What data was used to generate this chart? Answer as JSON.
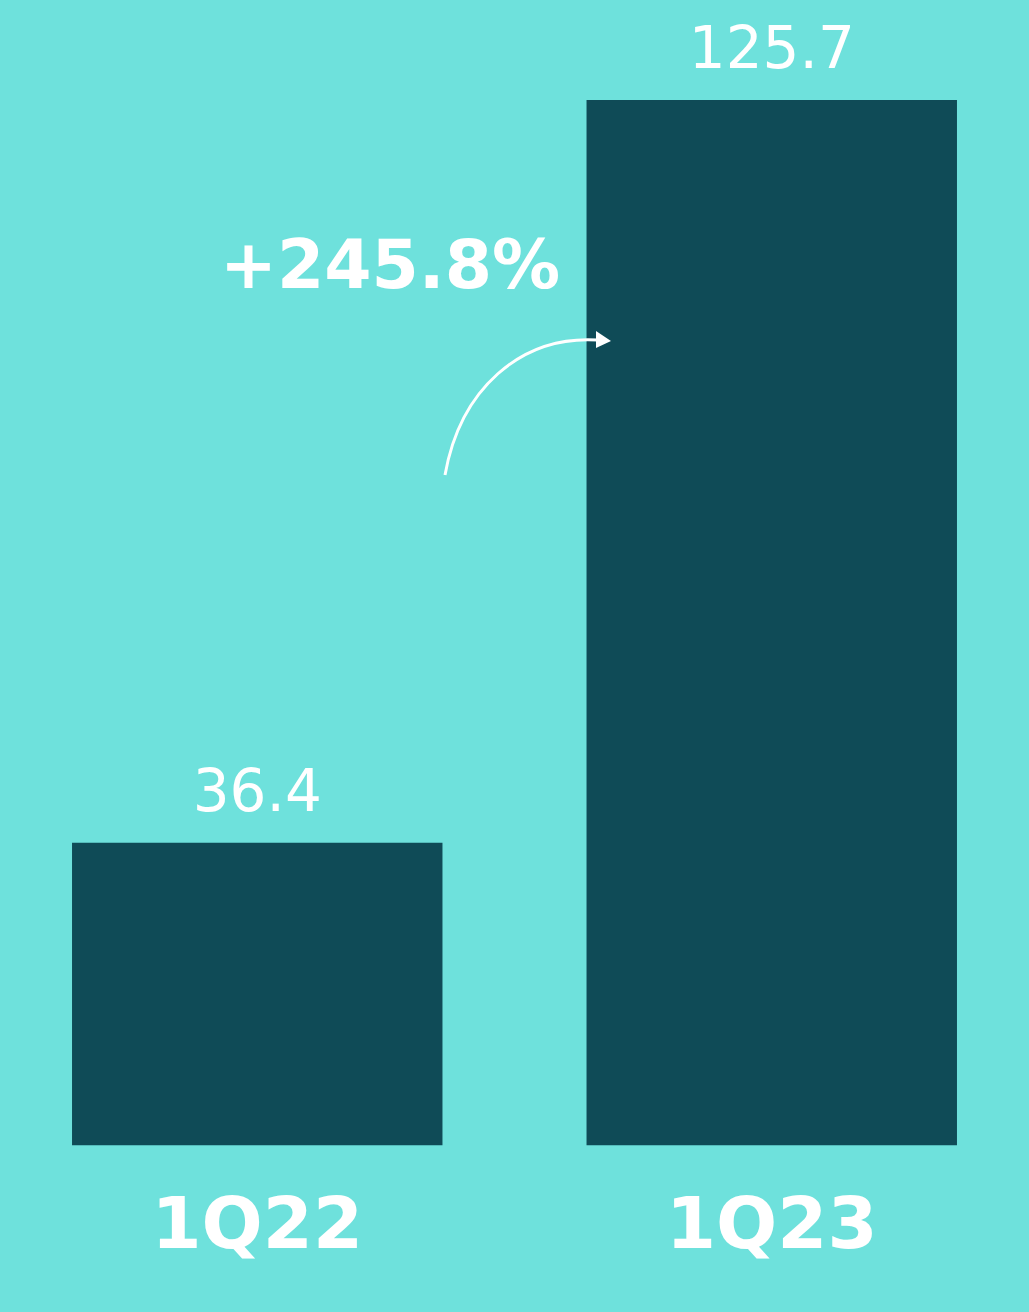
{
  "chart_data": {
    "type": "bar",
    "categories": [
      "1Q22",
      "1Q23"
    ],
    "values": [
      36.4,
      125.7
    ],
    "color": "#0f4b57",
    "data_labels": true,
    "grid": false,
    "legend": false,
    "annotations": [
      "+245.8%"
    ]
  }
}
